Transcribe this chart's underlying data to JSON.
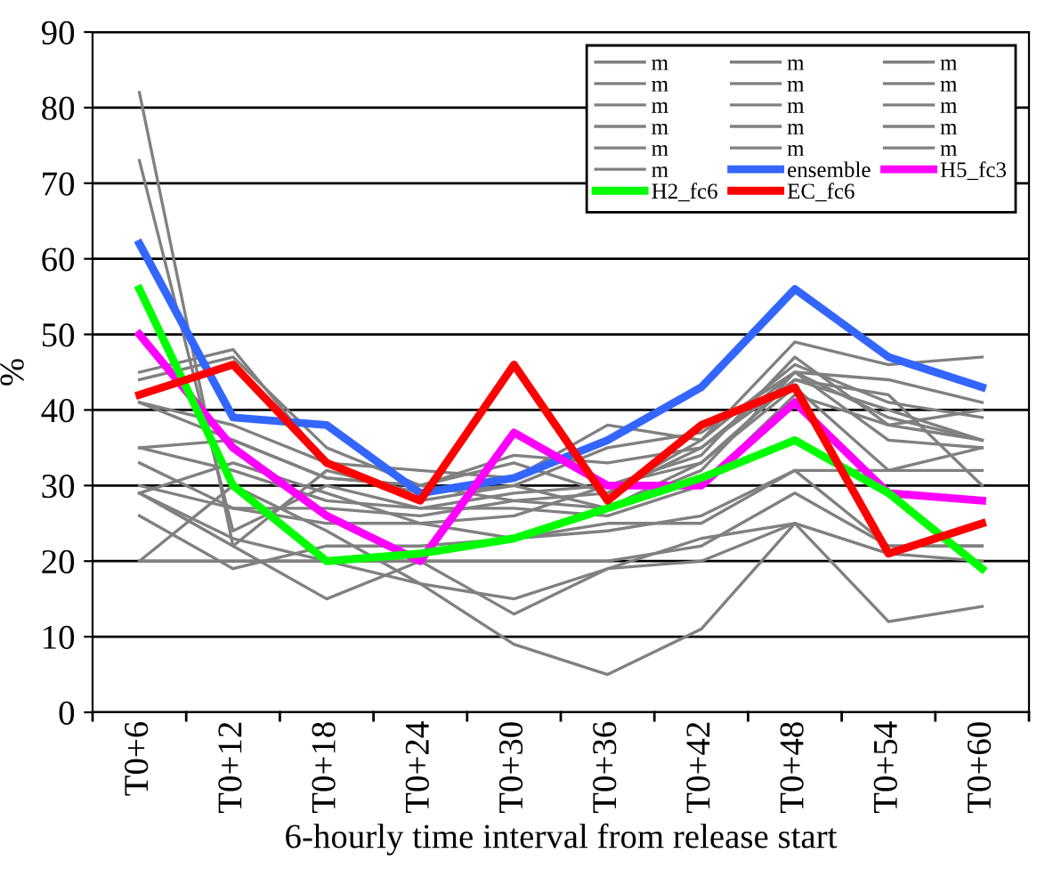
{
  "chart_data": {
    "type": "line",
    "xlabel": "6-hourly time interval from release start",
    "ylabel": "%",
    "categories": [
      "T0+6",
      "T0+12",
      "T0+18",
      "T0+24",
      "T0+30",
      "T0+36",
      "T0+42",
      "T0+48",
      "T0+54",
      "T0+60"
    ],
    "ylim": [
      0,
      90
    ],
    "yticks": [
      0,
      10,
      20,
      30,
      40,
      50,
      60,
      70,
      80,
      90
    ],
    "grid": "y",
    "legend": "top right",
    "line_style": "solid",
    "marker": "none",
    "series": [
      {
        "name": "m",
        "color": "#808080",
        "values": [
          82,
          22,
          32,
          29,
          30,
          27,
          33,
          44,
          42,
          30
        ]
      },
      {
        "name": "m",
        "color": "#808080",
        "values": [
          73,
          24,
          30,
          27,
          29,
          30,
          34,
          47,
          38,
          36
        ]
      },
      {
        "name": "m",
        "color": "#808080",
        "values": [
          45,
          48,
          33,
          32,
          31,
          38,
          36,
          49,
          46,
          47
        ]
      },
      {
        "name": "m",
        "color": "#808080",
        "values": [
          44,
          47,
          35,
          30,
          34,
          33,
          35,
          45,
          44,
          41
        ]
      },
      {
        "name": "m",
        "color": "#808080",
        "values": [
          41,
          36,
          31,
          30,
          33,
          29,
          36,
          46,
          41,
          39
        ]
      },
      {
        "name": "m",
        "color": "#808080",
        "values": [
          41,
          38,
          33,
          28,
          30,
          35,
          37,
          45,
          39,
          36
        ]
      },
      {
        "name": "m",
        "color": "#808080",
        "values": [
          35,
          36,
          31,
          30,
          28,
          29,
          35,
          44,
          40,
          36
        ]
      },
      {
        "name": "m",
        "color": "#808080",
        "values": [
          35,
          32,
          28,
          27,
          27,
          26,
          30,
          42,
          38,
          40
        ]
      },
      {
        "name": "m",
        "color": "#808080",
        "values": [
          33,
          27,
          27,
          26,
          28,
          27,
          32,
          45,
          36,
          35
        ]
      },
      {
        "name": "m",
        "color": "#808080",
        "values": [
          30,
          27,
          25,
          25,
          26,
          30,
          33,
          43,
          32,
          32
        ]
      },
      {
        "name": "m",
        "color": "#808080",
        "values": [
          29,
          33,
          29,
          25,
          23,
          25,
          25,
          32,
          32,
          35
        ]
      },
      {
        "name": "m",
        "color": "#808080",
        "values": [
          20,
          20,
          20,
          20,
          20,
          20,
          22,
          29,
          22,
          22
        ]
      },
      {
        "name": "m",
        "color": "#808080",
        "values": [
          26,
          19,
          22,
          22,
          23,
          24,
          26,
          32,
          22,
          22
        ]
      },
      {
        "name": "m",
        "color": "#808080",
        "values": [
          20,
          30,
          24,
          17,
          15,
          19,
          23,
          25,
          21,
          25
        ]
      },
      {
        "name": "m",
        "color": "#808080",
        "values": [
          29,
          22,
          15,
          20,
          13,
          19,
          20,
          25,
          21,
          20
        ]
      },
      {
        "name": "m",
        "color": "#808080",
        "values": [
          29,
          23,
          20,
          17,
          9,
          5,
          11,
          25,
          12,
          14
        ]
      },
      {
        "name": "ensemble",
        "color": "#3366ff",
        "values": [
          62,
          39,
          38,
          29,
          31,
          36,
          43,
          56,
          47,
          43
        ]
      },
      {
        "name": "H5_fc3",
        "color": "#ff00ff",
        "values": [
          50,
          35,
          26,
          20,
          37,
          30,
          30,
          41,
          29,
          28
        ]
      },
      {
        "name": "H2_fc6",
        "color": "#00ff00",
        "values": [
          56,
          30,
          20,
          21,
          23,
          27,
          31,
          36,
          29,
          19
        ]
      },
      {
        "name": "EC_fc6",
        "color": "#ff0000",
        "values": [
          42,
          46,
          33,
          28,
          46,
          28,
          38,
          43,
          21,
          25
        ]
      }
    ]
  }
}
